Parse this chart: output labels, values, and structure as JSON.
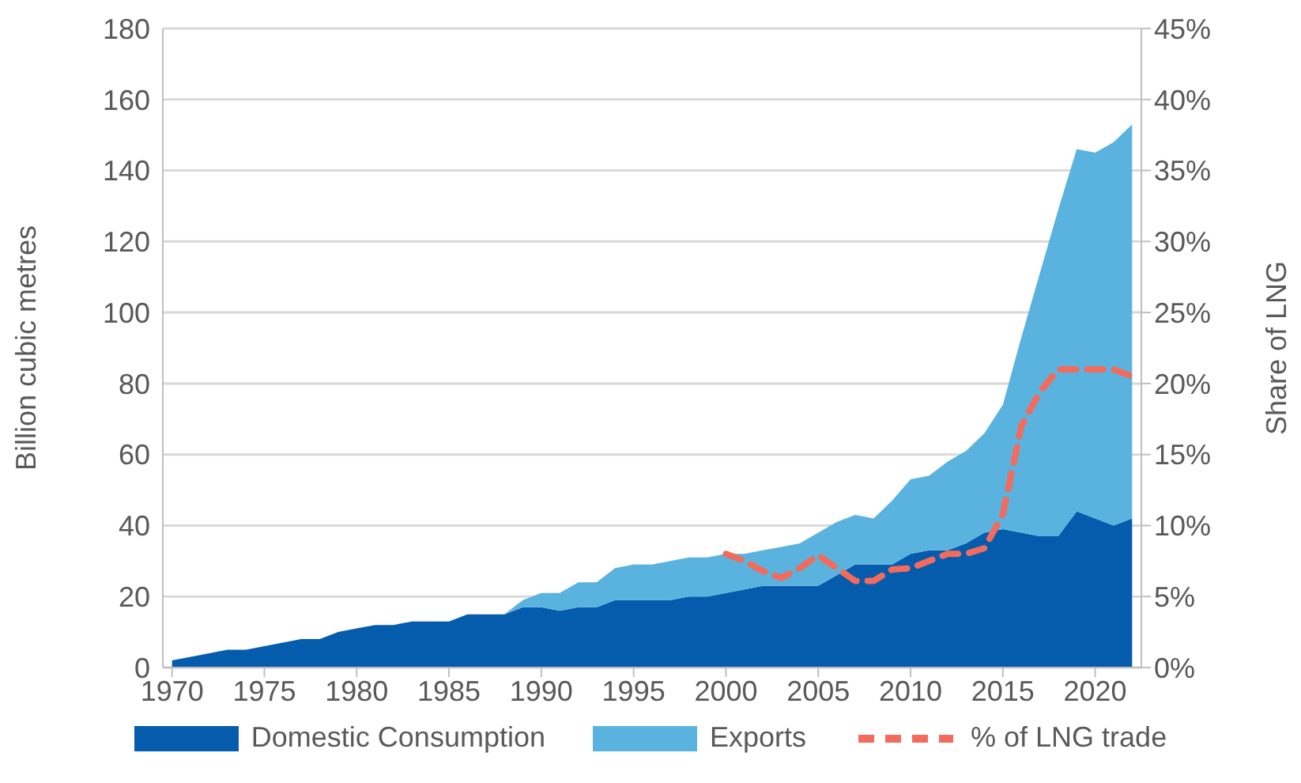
{
  "chart_data": {
    "type": "area",
    "stacked": true,
    "ylabel": "Billion cubic metres",
    "y2label": "Share of LNG",
    "x": [
      1970,
      1971,
      1972,
      1973,
      1974,
      1975,
      1976,
      1977,
      1978,
      1979,
      1980,
      1981,
      1982,
      1983,
      1984,
      1985,
      1986,
      1987,
      1988,
      1989,
      1990,
      1991,
      1992,
      1993,
      1994,
      1995,
      1996,
      1997,
      1998,
      1999,
      2000,
      2001,
      2002,
      2003,
      2004,
      2005,
      2006,
      2007,
      2008,
      2009,
      2010,
      2011,
      2012,
      2013,
      2014,
      2015,
      2016,
      2017,
      2018,
      2019,
      2020,
      2021,
      2022
    ],
    "xlim": [
      1969.5,
      2022.5
    ],
    "xticks": [
      1970,
      1975,
      1980,
      1985,
      1990,
      1995,
      2000,
      2005,
      2010,
      2015,
      2020
    ],
    "ylim": [
      0,
      180
    ],
    "yticks": [
      0,
      20,
      40,
      60,
      80,
      100,
      120,
      140,
      160,
      180
    ],
    "y2lim": [
      0,
      45
    ],
    "y2ticks": [
      {
        "value": 0,
        "label": "0%"
      },
      {
        "value": 5,
        "label": "5%"
      },
      {
        "value": 10,
        "label": "10%"
      },
      {
        "value": 15,
        "label": "15%"
      },
      {
        "value": 20,
        "label": "20%"
      },
      {
        "value": 25,
        "label": "25%"
      },
      {
        "value": 30,
        "label": "30%"
      },
      {
        "value": 35,
        "label": "35%"
      },
      {
        "value": 40,
        "label": "40%"
      },
      {
        "value": 45,
        "label": "45%"
      }
    ],
    "grid": "y",
    "legend": "bottom",
    "series": [
      {
        "name": "Domestic Consumption",
        "color": "#055cad",
        "values": [
          2,
          3,
          4,
          5,
          5,
          6,
          7,
          8,
          8,
          10,
          11,
          12,
          12,
          13,
          13,
          13,
          15,
          15,
          15,
          17,
          17,
          16,
          17,
          17,
          19,
          19,
          19,
          19,
          20,
          20,
          21,
          22,
          23,
          23,
          23,
          23,
          26,
          29,
          29,
          29,
          32,
          33,
          33,
          35,
          38,
          39,
          38,
          37,
          37,
          44,
          42,
          40,
          42
        ]
      },
      {
        "name": "Exports",
        "color": "#5ab3de",
        "values": [
          0,
          0,
          0,
          0,
          0,
          0,
          0,
          0,
          0,
          0,
          0,
          0,
          0,
          0,
          0,
          0,
          0,
          0,
          0,
          2,
          4,
          5,
          7,
          7,
          9,
          10,
          10,
          11,
          11,
          11,
          11,
          10,
          10,
          11,
          12,
          15,
          15,
          14,
          13,
          18,
          21,
          21,
          25,
          26,
          28,
          35,
          55,
          74,
          92,
          102,
          103,
          108,
          111
        ]
      },
      {
        "name": "% of LNG trade",
        "type": "line",
        "axis": "y2",
        "color": "#f26b5d",
        "line_style": "dashed",
        "marker": "none",
        "values": [
          null,
          null,
          null,
          null,
          null,
          null,
          null,
          null,
          null,
          null,
          null,
          null,
          null,
          null,
          null,
          null,
          null,
          null,
          null,
          null,
          null,
          null,
          null,
          null,
          null,
          null,
          null,
          null,
          null,
          null,
          8,
          7.5,
          6.8,
          6.3,
          7,
          7.9,
          7,
          6.1,
          6.1,
          6.9,
          7,
          7.5,
          8,
          8,
          8.4,
          10.8,
          17,
          19.4,
          21,
          21,
          21,
          21,
          20.5
        ]
      }
    ]
  }
}
